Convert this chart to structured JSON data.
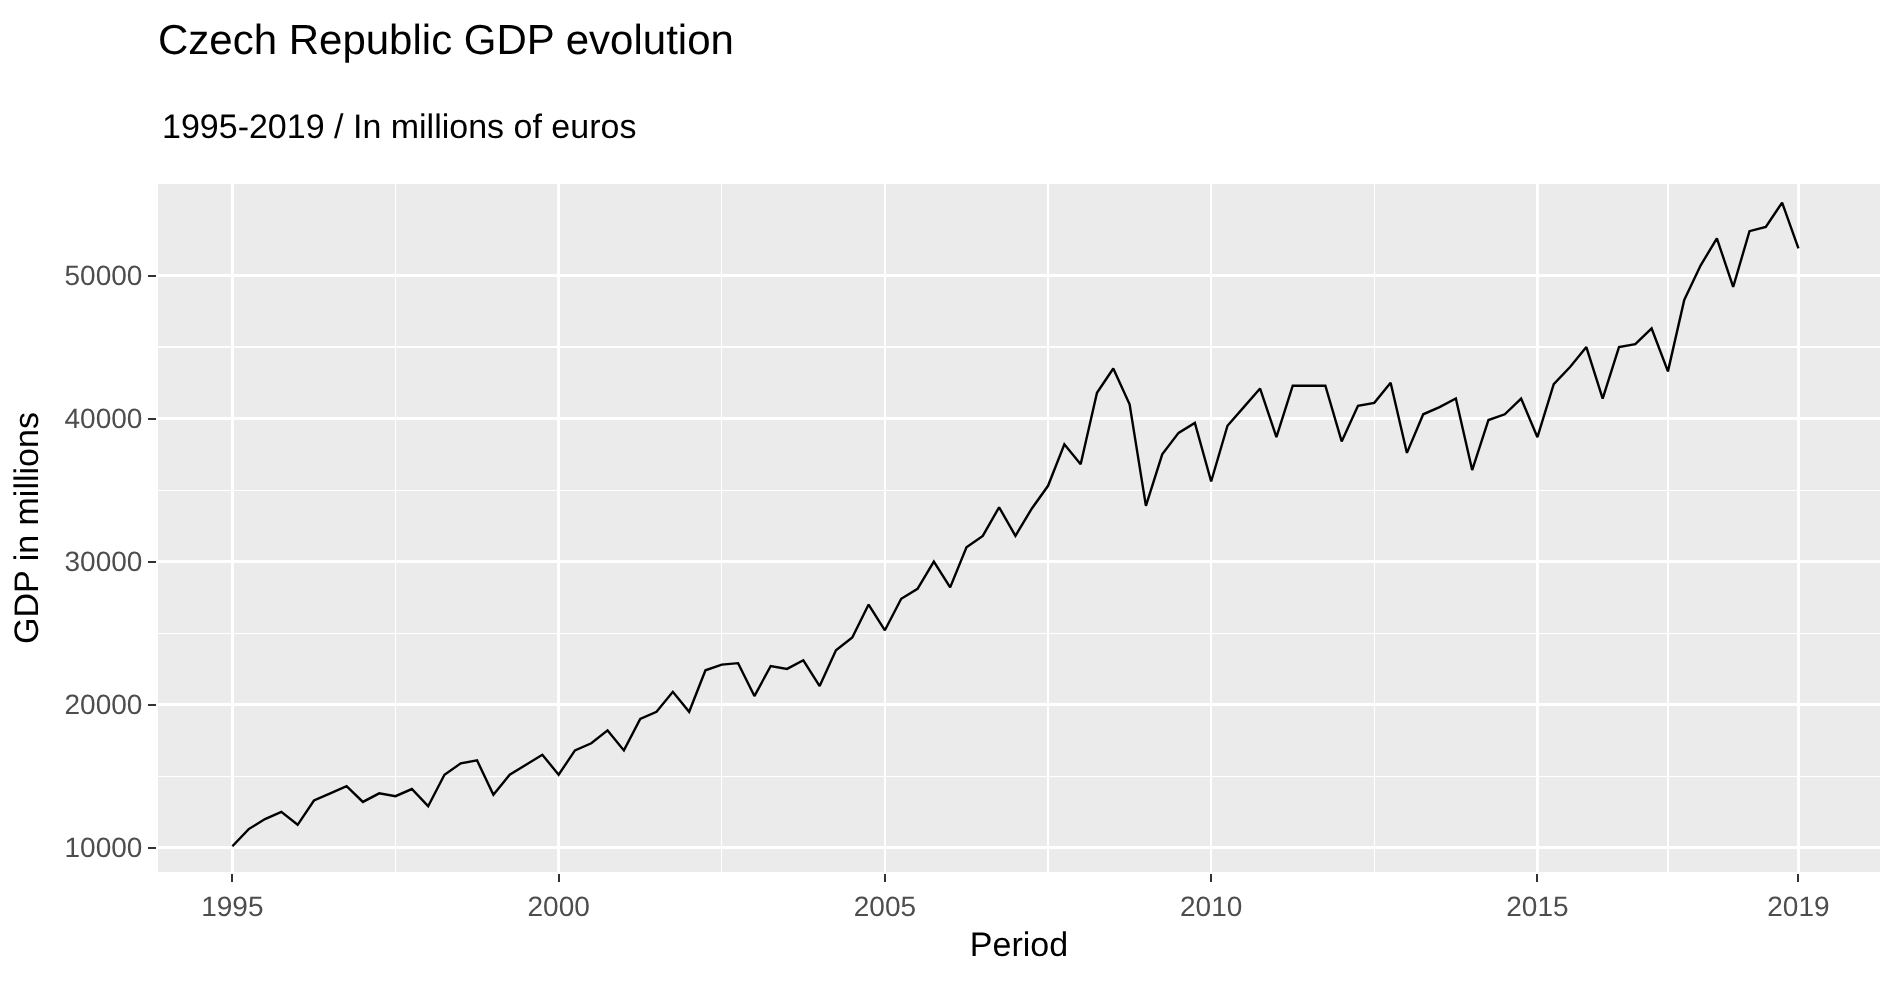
{
  "chart_data": {
    "type": "line",
    "title": "Czech Republic GDP evolution",
    "subtitle": "1995-2019 / In millions of euros",
    "xlabel": "Period",
    "ylabel": "GDP in millions",
    "x": [
      1995,
      1995.25,
      1995.5,
      1995.75,
      1996,
      1996.25,
      1996.5,
      1996.75,
      1997,
      1997.25,
      1997.5,
      1997.75,
      1998,
      1998.25,
      1998.5,
      1998.75,
      1999,
      1999.25,
      1999.5,
      1999.75,
      2000,
      2000.25,
      2000.5,
      2000.75,
      2001,
      2001.25,
      2001.5,
      2001.75,
      2002,
      2002.25,
      2002.5,
      2002.75,
      2003,
      2003.25,
      2003.5,
      2003.75,
      2004,
      2004.25,
      2004.5,
      2004.75,
      2005,
      2005.25,
      2005.5,
      2005.75,
      2006,
      2006.25,
      2006.5,
      2006.75,
      2007,
      2007.25,
      2007.5,
      2007.75,
      2008,
      2008.25,
      2008.5,
      2008.75,
      2009,
      2009.25,
      2009.5,
      2009.75,
      2010,
      2010.25,
      2010.5,
      2010.75,
      2011,
      2011.25,
      2011.5,
      2011.75,
      2012,
      2012.25,
      2012.5,
      2012.75,
      2013,
      2013.25,
      2013.5,
      2013.75,
      2014,
      2014.25,
      2014.5,
      2014.75,
      2015,
      2015.25,
      2015.5,
      2015.75,
      2016,
      2016.25,
      2016.5,
      2016.75,
      2017,
      2017.25,
      2017.5,
      2017.75,
      2018,
      2018.25,
      2018.5,
      2018.75,
      2019
    ],
    "series": [
      {
        "color": "#000000",
        "values": [
          10100,
          11300,
          12000,
          12500,
          11600,
          13300,
          13800,
          14300,
          13200,
          13800,
          13600,
          14100,
          12900,
          15100,
          15900,
          16100,
          13700,
          15100,
          15800,
          16500,
          15100,
          16800,
          17300,
          18200,
          16800,
          19000,
          19500,
          20900,
          19500,
          22400,
          22800,
          22900,
          20600,
          22700,
          22500,
          23100,
          21300,
          23800,
          24700,
          27000,
          25200,
          27400,
          28100,
          30000,
          28200,
          31000,
          31800,
          33800,
          31800,
          33700,
          35300,
          38200,
          36800,
          41800,
          43500,
          41000,
          33900,
          37500,
          39000,
          39700,
          35600,
          39500,
          40800,
          42100,
          38700,
          42300,
          42300,
          42300,
          38400,
          40900,
          41100,
          42500,
          37600,
          40300,
          40800,
          41400,
          36400,
          39900,
          40300,
          41400,
          38700,
          42400,
          43600,
          45000,
          41400,
          45000,
          45200,
          46300,
          43300,
          48300,
          50700,
          52600,
          49200,
          53100,
          53400,
          55100,
          51900
        ]
      }
    ],
    "xlim": [
      1993.86,
      2020.25
    ],
    "xticks": [
      1995,
      2000,
      2005,
      2010,
      2015,
      2019
    ],
    "ylim": [
      8300,
      56400
    ],
    "yticks": [
      10000,
      20000,
      30000,
      40000,
      50000
    ],
    "grid": true,
    "marker": "none",
    "line_style": "solid"
  }
}
